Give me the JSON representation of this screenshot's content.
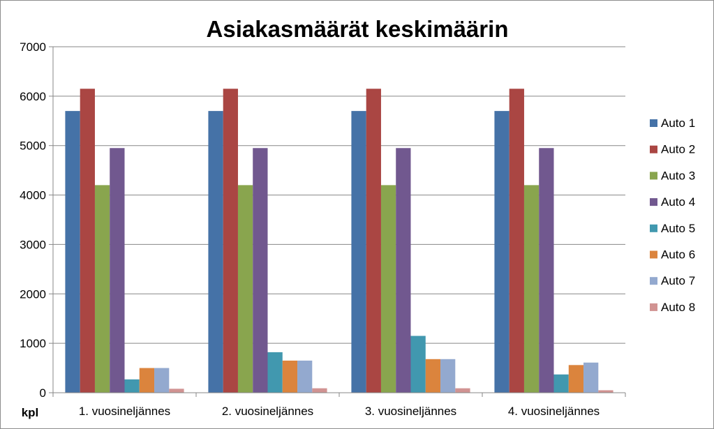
{
  "chart_data": {
    "type": "bar",
    "title": "Asiakasmäärät keskimäärin",
    "ylabel": "kpl",
    "xlabel": "",
    "ylim": [
      0,
      7000
    ],
    "yticks": [
      0,
      1000,
      2000,
      3000,
      4000,
      5000,
      6000,
      7000
    ],
    "grid": true,
    "legend_position": "right",
    "categories": [
      "1. vuosineljännes",
      "2. vuosineljännes",
      "3. vuosineljännes",
      "4. vuosineljännes"
    ],
    "series": [
      {
        "name": "Auto 1",
        "color": "#4572A7",
        "values": [
          5700,
          5700,
          5700,
          5700
        ]
      },
      {
        "name": "Auto 2",
        "color": "#AA4643",
        "values": [
          6150,
          6150,
          6150,
          6150
        ]
      },
      {
        "name": "Auto 3",
        "color": "#89A54E",
        "values": [
          4200,
          4200,
          4200,
          4200
        ]
      },
      {
        "name": "Auto 4",
        "color": "#71588F",
        "values": [
          4950,
          4950,
          4950,
          4950
        ]
      },
      {
        "name": "Auto 5",
        "color": "#4198AF",
        "values": [
          270,
          820,
          1150,
          370
        ]
      },
      {
        "name": "Auto 6",
        "color": "#DB843D",
        "values": [
          500,
          650,
          680,
          560
        ]
      },
      {
        "name": "Auto 7",
        "color": "#93A9CF",
        "values": [
          500,
          650,
          680,
          610
        ]
      },
      {
        "name": "Auto 8",
        "color": "#D19392",
        "values": [
          80,
          90,
          90,
          50
        ]
      }
    ]
  }
}
